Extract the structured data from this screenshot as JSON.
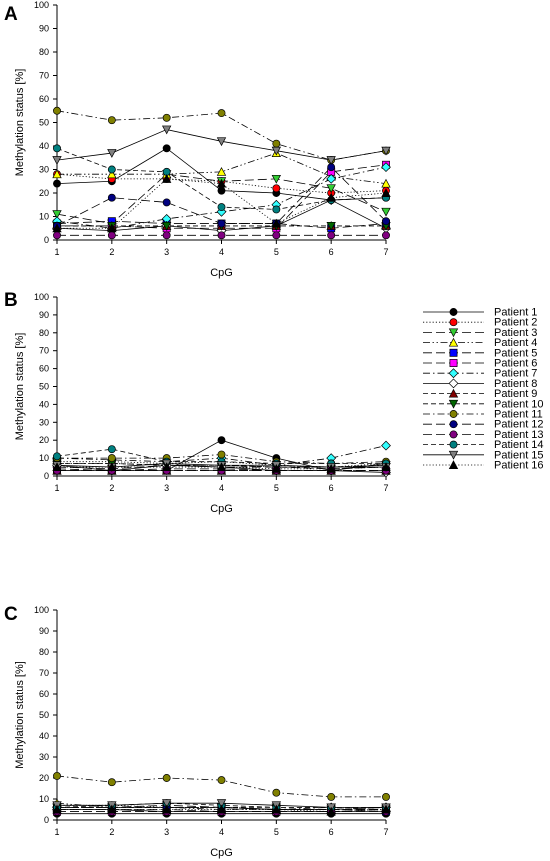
{
  "figure": {
    "panel_letters": [
      "A",
      "B",
      "C"
    ]
  },
  "chart_data": [
    {
      "panel": "A",
      "type": "line",
      "xlabel": "CpG",
      "ylabel": "Methylation status [%]",
      "x": [
        1,
        2,
        3,
        4,
        5,
        6,
        7
      ],
      "xlim": [
        1,
        7
      ],
      "ylim": [
        0,
        100
      ],
      "yticks": [
        0,
        10,
        20,
        30,
        40,
        50,
        60,
        70,
        80,
        90,
        100
      ],
      "grid": false,
      "series": [
        {
          "name": "Patient 1",
          "values": [
            24,
            25,
            39,
            21,
            20,
            17,
            18
          ]
        },
        {
          "name": "Patient 2",
          "values": [
            28,
            26,
            26,
            25,
            22,
            20,
            21
          ]
        },
        {
          "name": "Patient 3",
          "values": [
            11,
            7,
            28,
            25,
            26,
            22,
            12
          ]
        },
        {
          "name": "Patient 4",
          "values": [
            28,
            28,
            28,
            29,
            37,
            27,
            24
          ]
        },
        {
          "name": "Patient 5",
          "values": [
            7,
            8,
            7,
            7,
            7,
            5,
            7
          ]
        },
        {
          "name": "Patient 6",
          "values": [
            6,
            6,
            5,
            5,
            5,
            29,
            32
          ]
        },
        {
          "name": "Patient 7",
          "values": [
            8,
            5,
            9,
            12,
            15,
            26,
            31
          ]
        },
        {
          "name": "Patient 8",
          "values": [
            5,
            4,
            6,
            4,
            6,
            17,
            5
          ]
        },
        {
          "name": "Patient 9",
          "values": [
            6,
            6,
            6,
            6,
            6,
            6,
            6
          ]
        },
        {
          "name": "Patient 10",
          "values": [
            6,
            6,
            6,
            6,
            6,
            6,
            6
          ]
        },
        {
          "name": "Patient 11",
          "values": [
            55,
            51,
            52,
            54,
            41,
            34,
            38
          ]
        },
        {
          "name": "Patient 12",
          "values": [
            6,
            18,
            16,
            7,
            7,
            31,
            8
          ]
        },
        {
          "name": "Patient 13",
          "values": [
            2,
            2,
            2,
            2,
            2,
            2,
            2
          ]
        },
        {
          "name": "Patient 14",
          "values": [
            39,
            30,
            29,
            14,
            13,
            17,
            18
          ]
        },
        {
          "name": "Patient 15",
          "values": [
            34,
            37,
            47,
            42,
            38,
            34,
            38
          ]
        },
        {
          "name": "Patient 16",
          "values": [
            5,
            5,
            26,
            24,
            7,
            18,
            20
          ]
        }
      ]
    },
    {
      "panel": "B",
      "type": "line",
      "xlabel": "CpG",
      "ylabel": "Methylation status [%]",
      "x": [
        1,
        2,
        3,
        4,
        5,
        6,
        7
      ],
      "xlim": [
        1,
        7
      ],
      "ylim": [
        0,
        100
      ],
      "yticks": [
        0,
        10,
        20,
        30,
        40,
        50,
        60,
        70,
        80,
        90,
        100
      ],
      "grid": false,
      "series": [
        {
          "name": "Patient 1",
          "values": [
            3,
            3,
            3,
            20,
            10,
            3,
            7
          ]
        },
        {
          "name": "Patient 2",
          "values": [
            8,
            8,
            7,
            8,
            6,
            5,
            7
          ]
        },
        {
          "name": "Patient 3",
          "values": [
            5,
            4,
            6,
            5,
            5,
            4,
            5
          ]
        },
        {
          "name": "Patient 4",
          "values": [
            7,
            7,
            6,
            6,
            5,
            5,
            6
          ]
        },
        {
          "name": "Patient 5",
          "values": [
            4,
            3,
            4,
            4,
            3,
            3,
            3
          ]
        },
        {
          "name": "Patient 6",
          "values": [
            3,
            3,
            3,
            3,
            3,
            3,
            3
          ]
        },
        {
          "name": "Patient 7",
          "values": [
            10,
            9,
            8,
            10,
            6,
            10,
            17
          ]
        },
        {
          "name": "Patient 8",
          "values": [
            6,
            3,
            6,
            5,
            3,
            3,
            2
          ]
        },
        {
          "name": "Patient 9",
          "values": [
            3,
            3,
            3,
            3,
            3,
            3,
            3
          ]
        },
        {
          "name": "Patient 10",
          "values": [
            7,
            7,
            6,
            6,
            5,
            5,
            6
          ]
        },
        {
          "name": "Patient 11",
          "values": [
            10,
            10,
            10,
            12,
            8,
            7,
            8
          ]
        },
        {
          "name": "Patient 12",
          "values": [
            3,
            3,
            3,
            3,
            3,
            3,
            3
          ]
        },
        {
          "name": "Patient 13",
          "values": [
            3,
            3,
            3,
            3,
            3,
            3,
            3
          ]
        },
        {
          "name": "Patient 14",
          "values": [
            11,
            15,
            8,
            8,
            7,
            7,
            7
          ]
        },
        {
          "name": "Patient 15",
          "values": [
            6,
            5,
            7,
            6,
            6,
            5,
            5
          ]
        },
        {
          "name": "Patient 16",
          "values": [
            5,
            5,
            5,
            5,
            4,
            4,
            5
          ]
        }
      ]
    },
    {
      "panel": "C",
      "type": "line",
      "xlabel": "CpG",
      "ylabel": "Methylation status [%]",
      "x": [
        1,
        2,
        3,
        4,
        5,
        6,
        7
      ],
      "xlim": [
        1,
        7
      ],
      "ylim": [
        0,
        100
      ],
      "yticks": [
        0,
        10,
        20,
        30,
        40,
        50,
        60,
        70,
        80,
        90,
        100
      ],
      "grid": false,
      "series": [
        {
          "name": "Patient 1",
          "values": [
            3,
            3,
            3,
            3,
            3,
            3,
            3
          ]
        },
        {
          "name": "Patient 2",
          "values": [
            7,
            7,
            6,
            6,
            5,
            5,
            5
          ]
        },
        {
          "name": "Patient 3",
          "values": [
            6,
            6,
            7,
            6,
            5,
            5,
            5
          ]
        },
        {
          "name": "Patient 4",
          "values": [
            8,
            6,
            6,
            5,
            5,
            5,
            6
          ]
        },
        {
          "name": "Patient 5",
          "values": [
            5,
            5,
            5,
            4,
            4,
            4,
            4
          ]
        },
        {
          "name": "Patient 6",
          "values": [
            4,
            4,
            4,
            4,
            4,
            4,
            5
          ]
        },
        {
          "name": "Patient 7",
          "values": [
            6,
            6,
            6,
            6,
            5,
            6,
            6
          ]
        },
        {
          "name": "Patient 8",
          "values": [
            5,
            5,
            4,
            4,
            4,
            4,
            4
          ]
        },
        {
          "name": "Patient 9",
          "values": [
            6,
            6,
            6,
            6,
            5,
            5,
            6
          ]
        },
        {
          "name": "Patient 10",
          "values": [
            6,
            6,
            6,
            6,
            6,
            6,
            6
          ]
        },
        {
          "name": "Patient 11",
          "values": [
            21,
            18,
            20,
            19,
            13,
            11,
            11
          ]
        },
        {
          "name": "Patient 12",
          "values": [
            6,
            6,
            6,
            6,
            5,
            5,
            5
          ]
        },
        {
          "name": "Patient 13",
          "values": [
            4,
            4,
            4,
            4,
            4,
            4,
            4
          ]
        },
        {
          "name": "Patient 14",
          "values": [
            6,
            7,
            8,
            7,
            6,
            6,
            6
          ]
        },
        {
          "name": "Patient 15",
          "values": [
            7,
            7,
            8,
            8,
            7,
            6,
            6
          ]
        },
        {
          "name": "Patient 16",
          "values": [
            5,
            5,
            5,
            5,
            5,
            4,
            5
          ]
        }
      ]
    }
  ],
  "legend": {
    "placement": "right of panel B",
    "entries": [
      {
        "label": "Patient 1",
        "marker": "circle",
        "fill": "#000000",
        "dash": "solid"
      },
      {
        "label": "Patient 2",
        "marker": "circle",
        "fill": "#ff0000",
        "dash": "dot"
      },
      {
        "label": "Patient 3",
        "marker": "triangle-down",
        "fill": "#33cc33",
        "dash": "longdash"
      },
      {
        "label": "Patient 4",
        "marker": "triangle-up",
        "fill": "#ffff00",
        "dash": "dashdotdot"
      },
      {
        "label": "Patient 5",
        "marker": "square",
        "fill": "#0000ff",
        "dash": "longdash"
      },
      {
        "label": "Patient 6",
        "marker": "square",
        "fill": "#ff00ff",
        "dash": "longdash"
      },
      {
        "label": "Patient 7",
        "marker": "diamond",
        "fill": "#33ffff",
        "dash": "dashdot"
      },
      {
        "label": "Patient 8",
        "marker": "diamond",
        "fill": "#ffffff",
        "dash": "solid"
      },
      {
        "label": "Patient 9",
        "marker": "triangle-up",
        "fill": "#800000",
        "dash": "dash"
      },
      {
        "label": "Patient 10",
        "marker": "triangle-down",
        "fill": "#006600",
        "dash": "dash"
      },
      {
        "label": "Patient 11",
        "marker": "circle",
        "fill": "#808000",
        "dash": "dashdot"
      },
      {
        "label": "Patient 12",
        "marker": "circle",
        "fill": "#000080",
        "dash": "longdash"
      },
      {
        "label": "Patient 13",
        "marker": "circle",
        "fill": "#800080",
        "dash": "longdash"
      },
      {
        "label": "Patient 14",
        "marker": "circle",
        "fill": "#008080",
        "dash": "dash"
      },
      {
        "label": "Patient 15",
        "marker": "triangle-down",
        "fill": "#808080",
        "dash": "solid"
      },
      {
        "label": "Patient 16",
        "marker": "triangle-up",
        "fill": "#000000",
        "dash": "dot"
      }
    ]
  }
}
